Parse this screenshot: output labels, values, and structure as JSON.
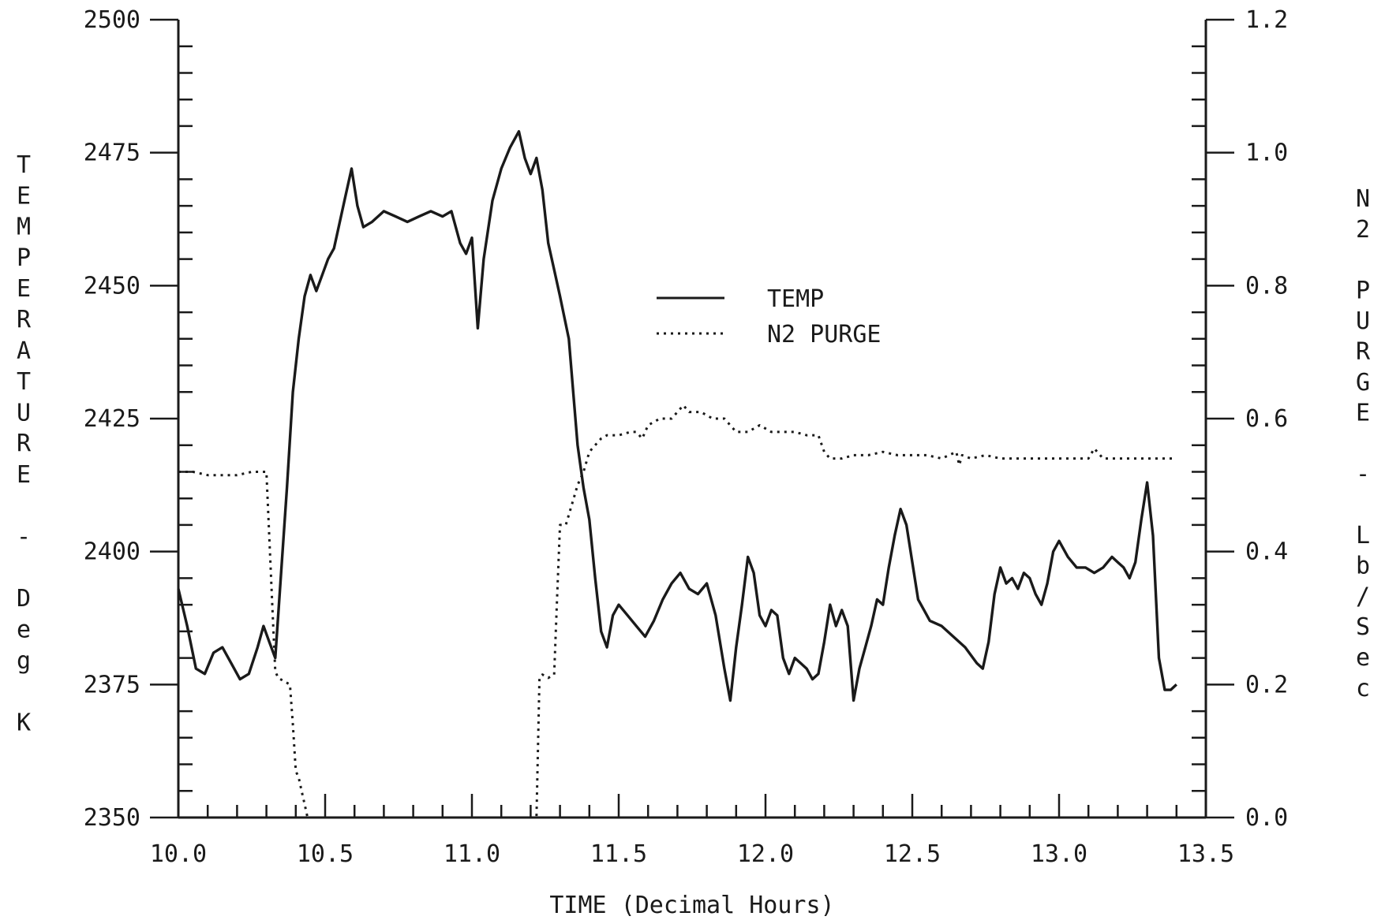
{
  "chart_data": {
    "type": "line",
    "xlabel": "TIME (Decimal Hours)",
    "ylabel_left": "TEMPERATURE - Deg K",
    "ylabel_right": "N2 PURGE - Lb/Sec",
    "xlim": [
      10.0,
      13.5
    ],
    "ylim_left": [
      2350,
      2500
    ],
    "ylim_right": [
      0.0,
      1.2
    ],
    "x_ticks": [
      "10.0",
      "10.5",
      "11.0",
      "11.5",
      "12.0",
      "12.5",
      "13.0",
      "13.5"
    ],
    "y_left_ticks": [
      "2350",
      "2375",
      "2400",
      "2425",
      "2450",
      "2475",
      "2500"
    ],
    "y_right_ticks": [
      "0.0",
      "0.2",
      "0.4",
      "0.6",
      "0.8",
      "1.0",
      "1.2"
    ],
    "grid": false,
    "legend_position": "center",
    "colors": {
      "ink": "#1a1a1a"
    },
    "series": [
      {
        "name": "TEMP",
        "axis": "left",
        "style": "solid",
        "x": [
          10.0,
          10.03,
          10.06,
          10.09,
          10.12,
          10.15,
          10.18,
          10.21,
          10.24,
          10.27,
          10.29,
          10.31,
          10.33,
          10.35,
          10.37,
          10.39,
          10.41,
          10.43,
          10.45,
          10.47,
          10.49,
          10.51,
          10.53,
          10.55,
          10.57,
          10.59,
          10.61,
          10.63,
          10.66,
          10.7,
          10.74,
          10.78,
          10.82,
          10.86,
          10.9,
          10.93,
          10.96,
          10.98,
          11.0,
          11.02,
          11.04,
          11.07,
          11.1,
          11.13,
          11.16,
          11.18,
          11.2,
          11.22,
          11.24,
          11.26,
          11.28,
          11.3,
          11.33,
          11.36,
          11.38,
          11.4,
          11.42,
          11.44,
          11.46,
          11.48,
          11.5,
          11.53,
          11.56,
          11.59,
          11.62,
          11.65,
          11.68,
          11.71,
          11.74,
          11.77,
          11.8,
          11.83,
          11.86,
          11.88,
          11.9,
          11.92,
          11.94,
          11.96,
          11.98,
          12.0,
          12.02,
          12.04,
          12.06,
          12.08,
          12.1,
          12.12,
          12.14,
          12.16,
          12.18,
          12.2,
          12.22,
          12.24,
          12.26,
          12.28,
          12.3,
          12.32,
          12.34,
          12.36,
          12.38,
          12.4,
          12.42,
          12.44,
          12.46,
          12.48,
          12.5,
          12.52,
          12.54,
          12.56,
          12.6,
          12.64,
          12.68,
          12.72,
          12.74,
          12.76,
          12.78,
          12.8,
          12.82,
          12.84,
          12.86,
          12.88,
          12.9,
          12.92,
          12.94,
          12.96,
          12.98,
          13.0,
          13.03,
          13.06,
          13.09,
          13.12,
          13.15,
          13.18,
          13.2,
          13.22,
          13.24,
          13.26,
          13.28,
          13.3,
          13.32,
          13.34,
          13.36,
          13.38,
          13.4
        ],
        "values": [
          2393,
          2386,
          2378,
          2377,
          2381,
          2382,
          2379,
          2376,
          2377,
          2382,
          2386,
          2383,
          2380,
          2396,
          2412,
          2430,
          2440,
          2448,
          2452,
          2449,
          2452,
          2455,
          2457,
          2462,
          2467,
          2472,
          2465,
          2461,
          2462,
          2464,
          2463,
          2462,
          2463,
          2464,
          2463,
          2464,
          2458,
          2456,
          2459,
          2442,
          2455,
          2466,
          2472,
          2476,
          2479,
          2474,
          2471,
          2474,
          2468,
          2458,
          2453,
          2448,
          2440,
          2420,
          2412,
          2406,
          2395,
          2385,
          2382,
          2388,
          2390,
          2388,
          2386,
          2384,
          2387,
          2391,
          2394,
          2396,
          2393,
          2392,
          2394,
          2388,
          2378,
          2372,
          2382,
          2390,
          2399,
          2396,
          2388,
          2386,
          2389,
          2388,
          2380,
          2377,
          2380,
          2379,
          2378,
          2376,
          2377,
          2383,
          2390,
          2386,
          2389,
          2386,
          2372,
          2378,
          2382,
          2386,
          2391,
          2390,
          2397,
          2403,
          2408,
          2405,
          2398,
          2391,
          2389,
          2387,
          2386,
          2384,
          2382,
          2379,
          2378,
          2383,
          2392,
          2397,
          2394,
          2395,
          2393,
          2396,
          2395,
          2392,
          2390,
          2394,
          2400,
          2402,
          2399,
          2397,
          2397,
          2396,
          2397,
          2399,
          2398,
          2397,
          2395,
          2398,
          2406,
          2413,
          2403,
          2380,
          2374,
          2374,
          2375
        ]
      },
      {
        "name": "N2 PURGE",
        "axis": "right",
        "style": "dotted",
        "x": [
          10.0,
          10.05,
          10.1,
          10.15,
          10.2,
          10.25,
          10.3,
          10.31,
          10.32,
          10.33,
          10.34,
          10.36,
          10.38,
          10.39,
          10.4,
          10.41,
          10.42,
          10.43,
          10.44,
          11.22,
          11.23,
          11.24,
          11.26,
          11.28,
          11.29,
          11.3,
          11.32,
          11.34,
          11.36,
          11.38,
          11.4,
          11.42,
          11.44,
          11.46,
          11.5,
          11.54,
          11.56,
          11.58,
          11.6,
          11.64,
          11.68,
          11.7,
          11.72,
          11.74,
          11.78,
          11.82,
          11.86,
          11.9,
          11.94,
          11.98,
          12.02,
          12.06,
          12.1,
          12.14,
          12.18,
          12.2,
          12.22,
          12.26,
          12.3,
          12.35,
          12.4,
          12.45,
          12.5,
          12.55,
          12.6,
          12.65,
          12.66,
          12.67,
          12.7,
          12.75,
          12.8,
          12.85,
          12.9,
          12.95,
          13.0,
          13.05,
          13.1,
          13.12,
          13.15,
          13.2,
          13.25,
          13.3,
          13.35,
          13.4
        ],
        "values": [
          0.52,
          0.52,
          0.515,
          0.515,
          0.515,
          0.52,
          0.52,
          0.42,
          0.32,
          0.22,
          0.21,
          0.205,
          0.2,
          0.14,
          0.07,
          0.06,
          0.04,
          0.02,
          0.0,
          0.0,
          0.21,
          0.215,
          0.21,
          0.215,
          0.33,
          0.44,
          0.44,
          0.47,
          0.5,
          0.52,
          0.55,
          0.56,
          0.57,
          0.575,
          0.575,
          0.58,
          0.58,
          0.57,
          0.59,
          0.6,
          0.6,
          0.61,
          0.62,
          0.61,
          0.61,
          0.6,
          0.6,
          0.58,
          0.58,
          0.59,
          0.58,
          0.58,
          0.58,
          0.575,
          0.575,
          0.55,
          0.54,
          0.54,
          0.545,
          0.545,
          0.55,
          0.545,
          0.545,
          0.545,
          0.54,
          0.55,
          0.53,
          0.545,
          0.54,
          0.545,
          0.54,
          0.54,
          0.54,
          0.54,
          0.54,
          0.54,
          0.54,
          0.555,
          0.54,
          0.54,
          0.54,
          0.54,
          0.54,
          0.54
        ]
      }
    ]
  }
}
